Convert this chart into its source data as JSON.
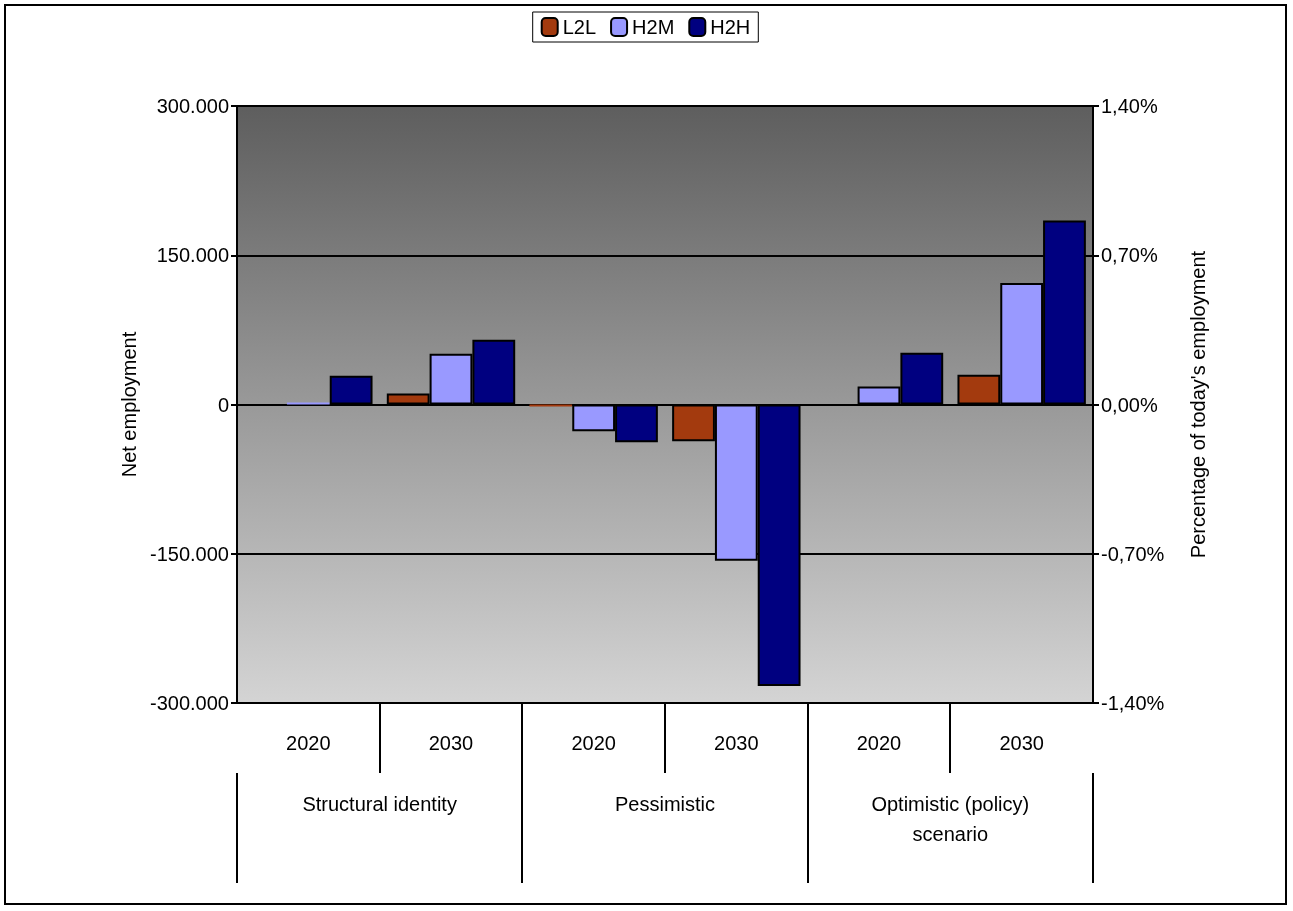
{
  "chart_data": {
    "type": "bar",
    "categories": [
      "2020",
      "2030",
      "2020",
      "2030",
      "2020",
      "2030"
    ],
    "annotations": [
      "Structural identity",
      "Pessimistic",
      "Optimistic (policy) scenario"
    ],
    "ylabel": "Net employment",
    "y2label": "Percentage of today's employment",
    "series": [
      {
        "name": "L2L",
        "color": "#a33a0e",
        "values": [
          0,
          11000,
          -2000,
          -37000,
          0,
          30000
        ]
      },
      {
        "name": "H2M",
        "color": "#9999ff",
        "values": [
          2000,
          51000,
          -27000,
          -157000,
          18000,
          122000
        ]
      },
      {
        "name": "H2H",
        "color": "#000080",
        "values": [
          29000,
          65000,
          -38000,
          -283000,
          52000,
          185000
        ]
      }
    ],
    "ylim": [
      -300000,
      300000
    ],
    "yticks": [
      {
        "value": -300000,
        "label": "-300.000"
      },
      {
        "value": -150000,
        "label": "-150.000"
      },
      0,
      {
        "value": 150000,
        "label": "150.000"
      },
      {
        "value": 300000,
        "label": "300.000"
      }
    ],
    "y2lim": [
      -1.4,
      1.4
    ],
    "y2ticks": [
      {
        "value": -1.4,
        "label": "-1,40%"
      },
      {
        "value": -0.7,
        "label": "-0,70%"
      },
      {
        "value": 0,
        "label": "0,00%"
      },
      {
        "value": 0.7,
        "label": "0,70%"
      },
      {
        "value": 1.4,
        "label": "1,40%"
      }
    ],
    "grid": "y",
    "legend": "top"
  }
}
